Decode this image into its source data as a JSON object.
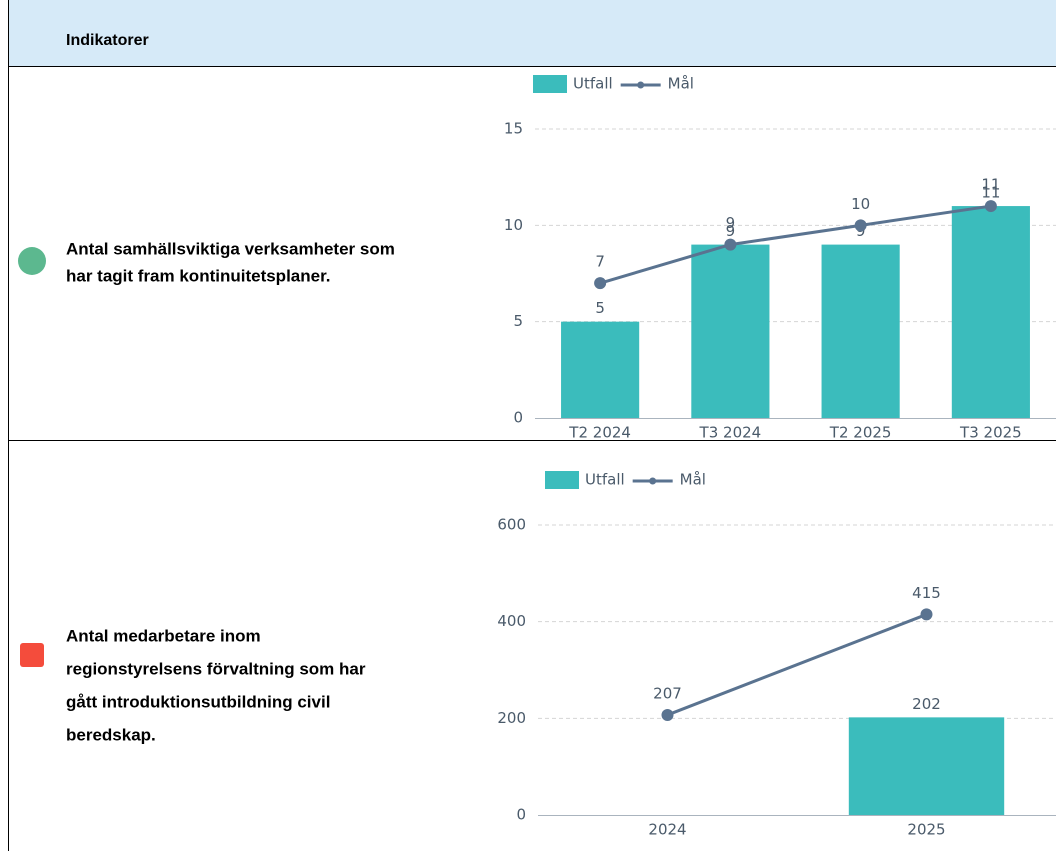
{
  "header": {
    "title": "Indikatorer"
  },
  "rows": [
    {
      "icon_color": "#5cb88f",
      "icon_shape": "circle",
      "text": [
        "Antal samhällsviktiga verksamheter som",
        "har tagit fram kontinuitetsplaner."
      ],
      "chart": {
        "type": "combo",
        "categories": [
          "T2 2024",
          "T3 2024",
          "T2 2025",
          "T3 2025"
        ],
        "series": [
          {
            "name": "Utfall",
            "type": "bar",
            "color": "#3bbcbc",
            "values": [
              5,
              9,
              9,
              11
            ]
          },
          {
            "name": "Mål",
            "type": "line",
            "color": "#5a7390",
            "values": [
              7,
              9,
              10,
              11
            ]
          }
        ],
        "ylim": [
          0,
          15
        ],
        "yticks": [
          0,
          5,
          10,
          15
        ],
        "grid": true
      }
    },
    {
      "icon_color": "#f44c3c",
      "icon_shape": "square",
      "text": [
        "Antal medarbetare inom",
        "regionstyrelsens förvaltning som har",
        "gått introduktionsutbildning civil",
        "beredskap."
      ],
      "chart": {
        "type": "combo",
        "categories": [
          "2024",
          "2025"
        ],
        "series": [
          {
            "name": "Utfall",
            "type": "bar",
            "color": "#3bbcbc",
            "values": [
              null,
              202
            ]
          },
          {
            "name": "Mål",
            "type": "line",
            "color": "#5a7390",
            "values": [
              207,
              415
            ]
          }
        ],
        "ylim": [
          0,
          600
        ],
        "yticks": [
          0,
          200,
          400,
          600
        ],
        "grid": true
      }
    }
  ]
}
